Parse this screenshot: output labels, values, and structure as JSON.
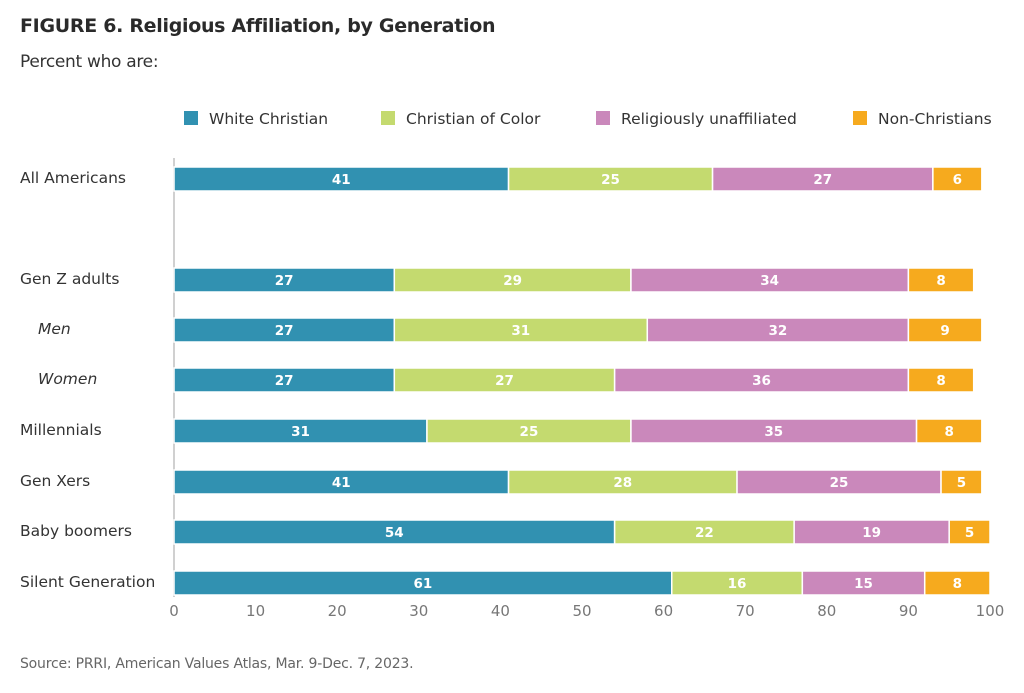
{
  "header": {
    "title": "FIGURE 6.  Religious Affiliation, by Generation",
    "subtitle": "Percent who are:"
  },
  "footer": {
    "source": "Source: PRRI, American Values Atlas, Mar. 9-Dec. 7, 2023."
  },
  "chart_data": {
    "type": "bar",
    "orientation": "horizontal",
    "stacked": true,
    "title": "FIGURE 6.  Religious Affiliation, by Generation",
    "subtitle": "Percent who are:",
    "xlabel": "",
    "ylabel": "",
    "xlim": [
      0,
      100
    ],
    "xticks": [
      0,
      10,
      20,
      30,
      40,
      50,
      60,
      70,
      80,
      90,
      100
    ],
    "grid": false,
    "legend_position": "top-right",
    "categories": [
      {
        "label": "All Americans",
        "italic": false
      },
      {
        "label": "Gen Z adults",
        "italic": false
      },
      {
        "label": "Men",
        "italic": true
      },
      {
        "label": "Women",
        "italic": true
      },
      {
        "label": "Millennials",
        "italic": false
      },
      {
        "label": "Gen Xers",
        "italic": false
      },
      {
        "label": "Baby boomers",
        "italic": false
      },
      {
        "label": "Silent Generation",
        "italic": false
      }
    ],
    "series": [
      {
        "name": "White Christian",
        "color": "#3191b1",
        "values": [
          41,
          27,
          27,
          27,
          31,
          41,
          54,
          61
        ]
      },
      {
        "name": "Christian of Color",
        "color": "#c4da6f",
        "values": [
          25,
          29,
          31,
          27,
          25,
          28,
          22,
          16
        ]
      },
      {
        "name": "Religiously unaffiliated",
        "color": "#ca88bb",
        "values": [
          27,
          34,
          32,
          36,
          35,
          25,
          19,
          15
        ]
      },
      {
        "name": "Non-Christians",
        "color": "#f6aa1e",
        "values": [
          6,
          8,
          9,
          8,
          8,
          5,
          5,
          8
        ]
      }
    ]
  }
}
